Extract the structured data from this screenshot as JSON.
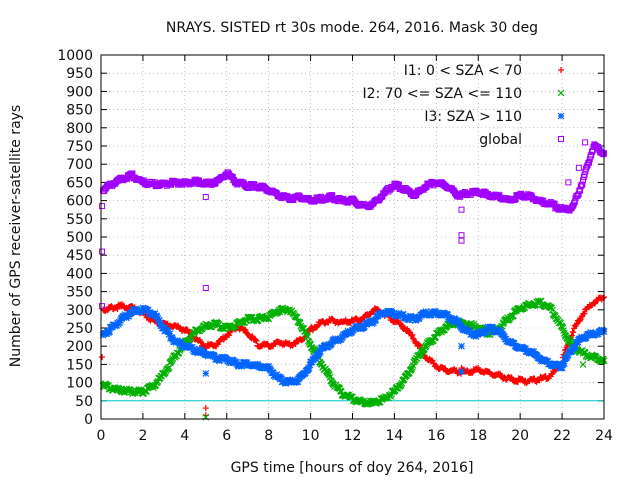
{
  "chart_data": {
    "type": "scatter",
    "title": "NRAYS. SISTED rt 30s mode. 264, 2016. Mask 30 deg",
    "xlabel": "GPS time [hours of doy 264, 2016]",
    "ylabel": "Number of GPS receiver-satellite rays",
    "xlim": [
      0,
      24
    ],
    "ylim": [
      0,
      1000
    ],
    "xticks": [
      "0",
      "2",
      "4",
      "6",
      "8",
      "10",
      "12",
      "14",
      "16",
      "18",
      "20",
      "22",
      "24"
    ],
    "yticks": [
      "0",
      "50",
      "100",
      "150",
      "200",
      "250",
      "300",
      "350",
      "400",
      "450",
      "500",
      "550",
      "600",
      "650",
      "700",
      "750",
      "800",
      "850",
      "900",
      "950",
      "1000"
    ],
    "legend_position": "top-right",
    "reference_line": {
      "y": 50,
      "color": "#00c8c8"
    },
    "series": [
      {
        "name": "I1: 0 < SZA < 70",
        "marker": "plus",
        "color": "#ff0000",
        "x": [
          0.1,
          0.5,
          1,
          1.5,
          2,
          2.5,
          3,
          3.5,
          4,
          4.5,
          5,
          5.5,
          6,
          6.5,
          7,
          7.5,
          8,
          8.5,
          9,
          9.5,
          10,
          10.5,
          11,
          11.5,
          12,
          12.5,
          13,
          13.5,
          14,
          14.5,
          15,
          15.5,
          16,
          16.5,
          17,
          17.5,
          18,
          18.5,
          19,
          19.5,
          20,
          20.5,
          21,
          21.5,
          22,
          22.5,
          23,
          23.5,
          24
        ],
        "y": [
          300,
          305,
          310,
          305,
          290,
          270,
          260,
          255,
          245,
          220,
          200,
          205,
          230,
          255,
          235,
          205,
          200,
          210,
          205,
          215,
          245,
          265,
          270,
          265,
          270,
          275,
          300,
          290,
          270,
          250,
          215,
          170,
          145,
          135,
          130,
          130,
          135,
          125,
          120,
          110,
          105,
          105,
          110,
          120,
          160,
          240,
          290,
          320,
          335
        ],
        "extra_points": [
          {
            "x": 5,
            "y": 30
          },
          {
            "x": 5,
            "y": 10
          },
          {
            "x": 17.2,
            "y": 140
          },
          {
            "x": 0.05,
            "y": 170
          }
        ]
      },
      {
        "name": "I2: 70 <= SZA <= 110",
        "marker": "x",
        "color": "#00b000",
        "x": [
          0.1,
          0.5,
          1,
          1.5,
          2,
          2.5,
          3,
          3.5,
          4,
          4.5,
          5,
          5.5,
          6,
          6.5,
          7,
          7.5,
          8,
          8.5,
          9,
          9.5,
          10,
          10.5,
          11,
          11.5,
          12,
          12.5,
          13,
          13.5,
          14,
          14.5,
          15,
          15.5,
          16,
          16.5,
          17,
          17.5,
          18,
          18.5,
          19,
          19.5,
          20,
          20.5,
          21,
          21.5,
          22,
          22.5,
          23,
          23.5,
          24
        ],
        "y": [
          95,
          85,
          80,
          75,
          75,
          90,
          125,
          170,
          210,
          240,
          255,
          260,
          250,
          260,
          275,
          275,
          280,
          300,
          300,
          265,
          205,
          155,
          105,
          70,
          55,
          45,
          45,
          55,
          75,
          110,
          160,
          200,
          230,
          255,
          265,
          260,
          250,
          235,
          250,
          280,
          305,
          315,
          320,
          300,
          250,
          200,
          180,
          170,
          160
        ],
        "extra_points": [
          {
            "x": 23,
            "y": 150
          },
          {
            "x": 5,
            "y": 5
          }
        ]
      },
      {
        "name": "I3: SZA > 110",
        "marker": "star",
        "color": "#0066ff",
        "x": [
          0.1,
          0.5,
          1,
          1.5,
          2,
          2.5,
          3,
          3.5,
          4,
          4.5,
          5,
          5.5,
          6,
          6.5,
          7,
          7.5,
          8,
          8.5,
          9,
          9.5,
          10,
          10.5,
          11,
          11.5,
          12,
          12.5,
          13,
          13.5,
          14,
          14.5,
          15,
          15.5,
          16,
          16.5,
          17,
          17.5,
          18,
          18.5,
          19,
          19.5,
          20,
          20.5,
          21,
          21.5,
          22,
          22.5,
          23,
          23.5,
          24
        ],
        "y": [
          230,
          250,
          275,
          295,
          300,
          290,
          250,
          215,
          200,
          190,
          180,
          165,
          165,
          150,
          150,
          145,
          140,
          110,
          100,
          110,
          150,
          190,
          210,
          225,
          245,
          255,
          270,
          295,
          290,
          280,
          275,
          290,
          290,
          285,
          265,
          240,
          230,
          250,
          240,
          210,
          195,
          185,
          165,
          150,
          145,
          195,
          225,
          235,
          240
        ],
        "extra_points": [
          {
            "x": 5,
            "y": 125
          },
          {
            "x": 17.2,
            "y": 200
          },
          {
            "x": 17.2,
            "y": 130
          }
        ]
      },
      {
        "name": "global",
        "marker": "square",
        "color": "#a000ff",
        "x": [
          0.1,
          0.5,
          1,
          1.5,
          2,
          2.5,
          3,
          3.5,
          4,
          4.5,
          5,
          5.5,
          6,
          6.5,
          7,
          7.5,
          8,
          8.5,
          9,
          9.5,
          10,
          10.5,
          11,
          11.5,
          12,
          12.5,
          13,
          13.5,
          14,
          14.5,
          15,
          15.5,
          16,
          16.5,
          17,
          17.5,
          18,
          18.5,
          19,
          19.5,
          20,
          20.5,
          21,
          21.5,
          22,
          22.5,
          23,
          23.5,
          24
        ],
        "y": [
          630,
          645,
          660,
          670,
          650,
          645,
          645,
          650,
          648,
          652,
          648,
          650,
          675,
          650,
          640,
          640,
          630,
          615,
          605,
          610,
          600,
          605,
          610,
          600,
          600,
          585,
          590,
          620,
          645,
          630,
          615,
          640,
          650,
          640,
          615,
          620,
          625,
          615,
          610,
          600,
          615,
          610,
          595,
          590,
          575,
          580,
          655,
          750,
          730
        ],
        "extra_points": [
          {
            "x": 0.05,
            "y": 585
          },
          {
            "x": 0.05,
            "y": 460
          },
          {
            "x": 0.05,
            "y": 310
          },
          {
            "x": 5,
            "y": 610
          },
          {
            "x": 5,
            "y": 360
          },
          {
            "x": 17.2,
            "y": 505
          },
          {
            "x": 17.2,
            "y": 490
          },
          {
            "x": 17.2,
            "y": 575
          },
          {
            "x": 22.3,
            "y": 650
          },
          {
            "x": 22.8,
            "y": 690
          },
          {
            "x": 23.1,
            "y": 760
          }
        ]
      }
    ]
  }
}
